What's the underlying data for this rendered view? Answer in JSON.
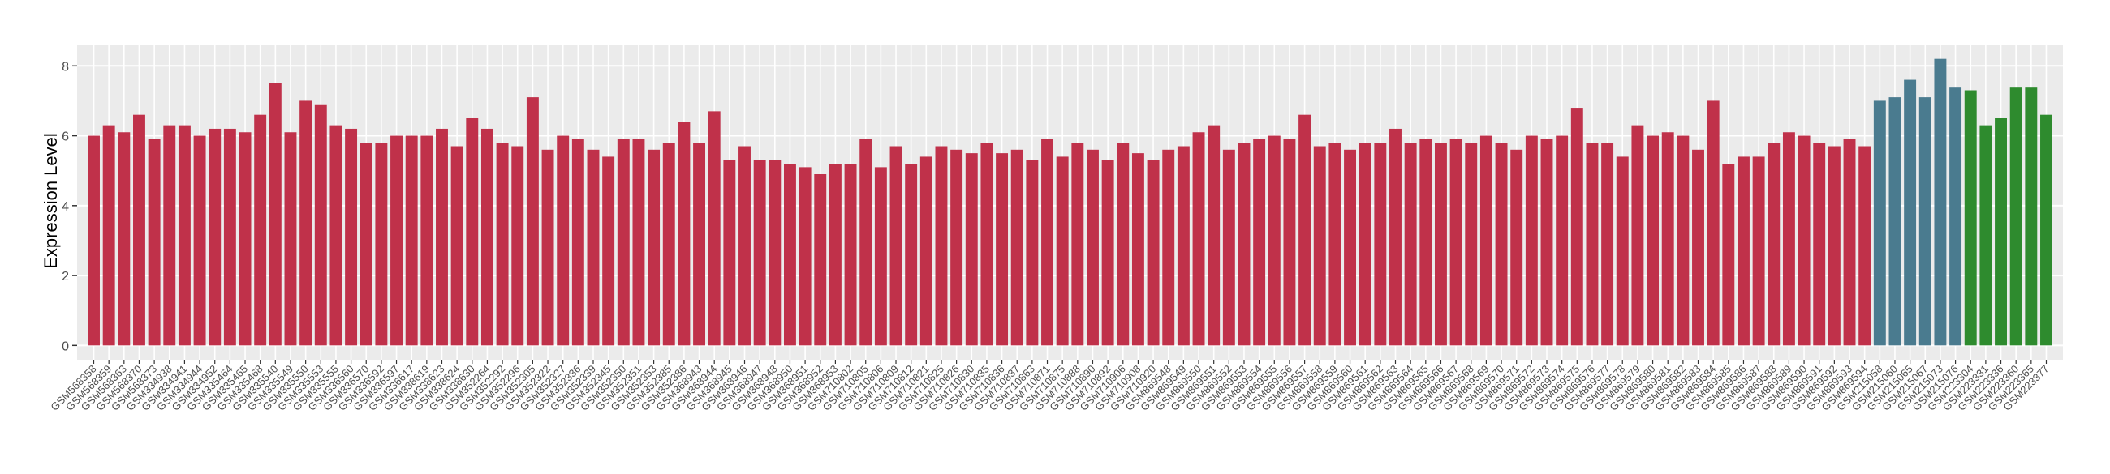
{
  "chart_data": {
    "type": "bar",
    "y_label": "Expression Level",
    "ylim": [
      -0.41,
      8.61
    ],
    "yticks": [
      0,
      2,
      4,
      6,
      8
    ],
    "grid": true,
    "series": [
      {
        "color": "#c0314a",
        "categories": [
          "GSM568358",
          "GSM568359",
          "GSM568363",
          "GSM568370",
          "GSM568373",
          "GSM334938",
          "GSM334941",
          "GSM334944",
          "GSM334952",
          "GSM335464",
          "GSM335465",
          "GSM335468",
          "GSM335540",
          "GSM335549",
          "GSM335550",
          "GSM335553",
          "GSM335555",
          "GSM336560",
          "GSM336570",
          "GSM336592",
          "GSM336597",
          "GSM336617",
          "GSM338619",
          "GSM338623",
          "GSM338624",
          "GSM338630",
          "GSM352264",
          "GSM352292",
          "GSM352296",
          "GSM352305",
          "GSM352322",
          "GSM352327",
          "GSM352336",
          "GSM352339",
          "GSM352345",
          "GSM352350",
          "GSM352351",
          "GSM352353",
          "GSM352385",
          "GSM352386",
          "GSM368943",
          "GSM368944",
          "GSM368945",
          "GSM368946",
          "GSM368947",
          "GSM368948",
          "GSM368950",
          "GSM368951",
          "GSM368952",
          "GSM368953",
          "GSM710802",
          "GSM710805",
          "GSM710806",
          "GSM710809",
          "GSM710812",
          "GSM710821",
          "GSM710825",
          "GSM710826",
          "GSM710830",
          "GSM710835",
          "GSM710836",
          "GSM710837",
          "GSM710863",
          "GSM710871",
          "GSM710875",
          "GSM710888",
          "GSM710890",
          "GSM710892",
          "GSM710906",
          "GSM710908",
          "GSM710920",
          "GSM869548",
          "GSM869549",
          "GSM869550",
          "GSM869551",
          "GSM869552",
          "GSM869553",
          "GSM869554",
          "GSM869555",
          "GSM869556",
          "GSM869557",
          "GSM869558",
          "GSM869559",
          "GSM869560",
          "GSM869561",
          "GSM869562",
          "GSM869563",
          "GSM869564",
          "GSM869565",
          "GSM869566",
          "GSM869567",
          "GSM869568",
          "GSM869569",
          "GSM869570",
          "GSM869571",
          "GSM869572",
          "GSM869573",
          "GSM869574",
          "GSM869575",
          "GSM869576",
          "GSM869577",
          "GSM869578",
          "GSM869579",
          "GSM869580",
          "GSM869581",
          "GSM869582",
          "GSM869583",
          "GSM869584",
          "GSM869585",
          "GSM869586",
          "GSM869587",
          "GSM869588",
          "GSM869589",
          "GSM869590",
          "GSM869591",
          "GSM869592",
          "GSM869593",
          "GSM869594"
        ],
        "values": [
          6.0,
          6.3,
          6.1,
          6.6,
          5.9,
          6.3,
          6.3,
          6.0,
          6.2,
          6.2,
          6.1,
          6.6,
          7.5,
          6.1,
          7.0,
          6.9,
          6.3,
          6.2,
          5.8,
          5.8,
          6.0,
          6.0,
          6.0,
          6.2,
          5.7,
          6.5,
          6.2,
          5.8,
          5.7,
          7.1,
          5.6,
          6.0,
          5.9,
          5.6,
          5.4,
          5.9,
          5.9,
          5.6,
          5.8,
          6.4,
          5.8,
          6.7,
          5.3,
          5.7,
          5.3,
          5.3,
          5.2,
          5.1,
          4.9,
          5.2,
          5.2,
          5.9,
          5.1,
          5.7,
          5.2,
          5.4,
          5.7,
          5.6,
          5.5,
          5.8,
          5.5,
          5.6,
          5.3,
          5.9,
          5.4,
          5.8,
          5.6,
          5.3,
          5.8,
          5.5,
          5.3,
          5.6,
          5.7,
          6.1,
          6.3,
          5.6,
          5.8,
          5.9,
          6.0,
          5.9,
          6.6,
          5.7,
          5.8,
          5.6,
          5.8,
          5.8,
          6.2,
          5.8,
          5.9,
          5.8,
          5.9,
          5.8,
          6.0,
          5.8,
          5.6,
          6.0,
          5.9,
          6.0,
          6.8,
          5.8,
          5.8,
          5.4,
          6.3,
          6.0,
          6.1,
          6.0,
          5.6,
          7.0,
          5.2,
          5.4,
          5.4,
          5.8,
          6.1,
          6.0,
          5.8,
          5.7,
          5.9,
          5.7
        ]
      },
      {
        "color": "#4a7b8f",
        "categories": [
          "GSM215058",
          "GSM215060",
          "GSM215065",
          "GSM215067",
          "GSM215073",
          "GSM215076"
        ],
        "values": [
          7.0,
          7.1,
          7.6,
          7.1,
          8.2,
          7.4
        ]
      },
      {
        "color": "#2e8b2e",
        "categories": [
          "GSM223304",
          "GSM223331",
          "GSM223336",
          "GSM223360",
          "GSM223365",
          "GSM223377"
        ],
        "values": [
          7.3,
          6.3,
          6.5,
          7.4,
          7.4,
          6.6
        ]
      }
    ]
  }
}
